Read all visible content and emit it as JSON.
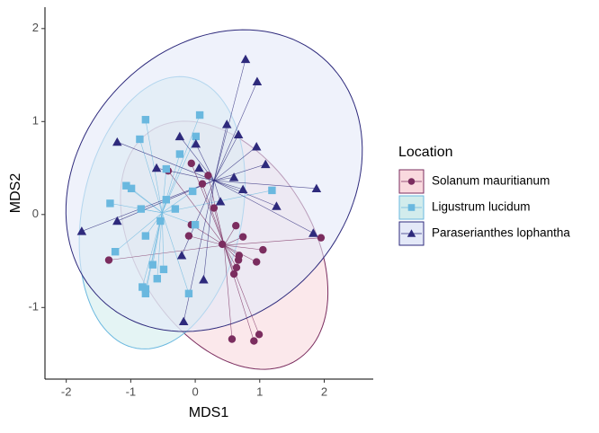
{
  "chart_data": {
    "type": "scatter",
    "x_label": "MDS1",
    "y_label": "MDS2",
    "xlim": [
      -2.33,
      2.76
    ],
    "ylim": [
      -1.77,
      2.23
    ],
    "xticks": [
      -2,
      -1,
      0,
      1,
      2
    ],
    "yticks": [
      -1,
      0,
      1,
      2
    ],
    "grid": false,
    "legend_title": "Location",
    "legend_position": "right",
    "ellipses": true,
    "spiders": true,
    "series": [
      {
        "name": "Solanum mauritianum",
        "color": "#7b2d5f",
        "fill": "#f9d9de",
        "shape": "circle",
        "x": [
          -1.34,
          -0.42,
          -0.06,
          0.2,
          0.29,
          -0.1,
          -0.06,
          0.42,
          0.63,
          0.74,
          1.05,
          0.95,
          0.67,
          0.64,
          0.68,
          0.6,
          0.99,
          0.91,
          0.57,
          1.95,
          0.11
        ],
        "values": [
          -0.49,
          0.47,
          0.55,
          0.42,
          0.07,
          -0.23,
          -0.11,
          -0.32,
          -0.12,
          -0.24,
          -0.38,
          -0.51,
          -0.49,
          -0.57,
          -0.44,
          -0.64,
          -1.29,
          -1.36,
          -1.34,
          -0.25,
          0.33
        ]
      },
      {
        "name": "Ligustrum lucidum",
        "color": "#6ab8df",
        "fill": "#d2ecec",
        "shape": "square",
        "x": [
          -0.77,
          -0.86,
          0.07,
          0.01,
          -0.24,
          -0.45,
          -1.07,
          -0.99,
          -1.32,
          -0.84,
          -0.45,
          -0.54,
          -0.31,
          -0.04,
          0,
          -0.77,
          -1.24,
          -0.66,
          -0.59,
          -0.82,
          -0.77,
          -0.77,
          -0.1,
          1.19,
          -0.49
        ],
        "values": [
          1.02,
          0.81,
          1.07,
          0.84,
          0.65,
          0.49,
          0.31,
          0.28,
          0.12,
          0.06,
          0.16,
          -0.07,
          0.06,
          0.25,
          -0.11,
          -0.23,
          -0.4,
          -0.54,
          -0.69,
          -0.78,
          -0.85,
          -0.8,
          -0.85,
          0.26,
          -0.59
        ]
      },
      {
        "name": "Paraserianthes lophantha",
        "color": "#2e2a7c",
        "fill": "#e4e9f8",
        "shape": "triangle",
        "x": [
          0.78,
          0.96,
          0.49,
          0.67,
          -0.24,
          0.01,
          0.95,
          -1.21,
          -0.6,
          0.06,
          1.09,
          0.6,
          0.74,
          1.88,
          1.26,
          -1.21,
          -1.76,
          1.83,
          -0.21,
          0.13,
          -0.18,
          0.39
        ],
        "values": [
          1.67,
          1.43,
          0.97,
          0.86,
          0.84,
          0.76,
          0.73,
          0.78,
          0.5,
          0.5,
          0.54,
          0.4,
          0.27,
          0.28,
          0.09,
          -0.07,
          -0.18,
          -0.2,
          -0.44,
          -0.7,
          -1.15,
          0.14
        ]
      }
    ]
  }
}
